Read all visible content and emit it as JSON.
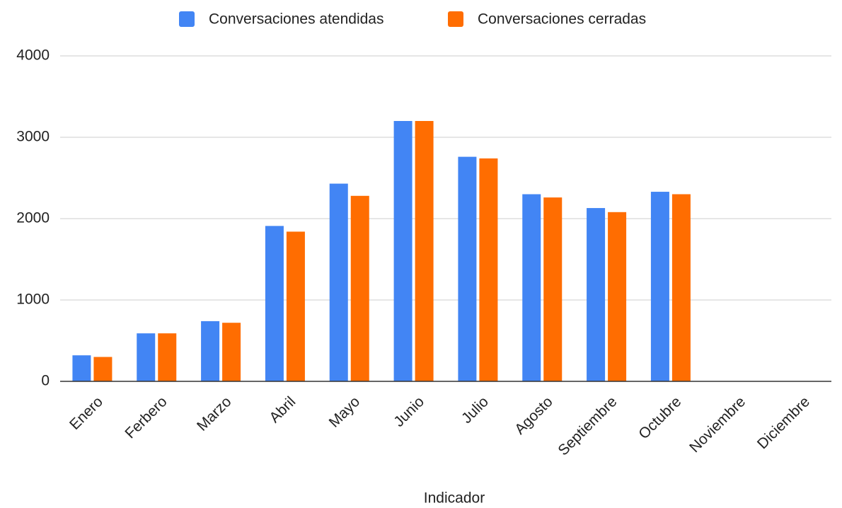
{
  "chart_data": {
    "type": "bar",
    "x_label": "Indicador",
    "categories": [
      "Enero",
      "Ferbero",
      "Marzo",
      "Abril",
      "Mayo",
      "Junio",
      "Julio",
      "Agosto",
      "Septiembre",
      "Octubre",
      "Noviembre",
      "Diciembre"
    ],
    "series": [
      {
        "name": "Conversaciones atendidas",
        "color": "#4285f4",
        "values": [
          320,
          590,
          740,
          1910,
          2430,
          3200,
          2760,
          2300,
          2130,
          2330,
          null,
          null
        ]
      },
      {
        "name": "Conversaciones cerradas",
        "color": "#ff6d01",
        "values": [
          300,
          590,
          720,
          1840,
          2280,
          3200,
          2740,
          2260,
          2080,
          2300,
          null,
          null
        ]
      }
    ],
    "ylim": [
      0,
      4000
    ],
    "yticks": [
      0,
      1000,
      2000,
      3000,
      4000
    ],
    "grid": true,
    "legend": "top"
  }
}
